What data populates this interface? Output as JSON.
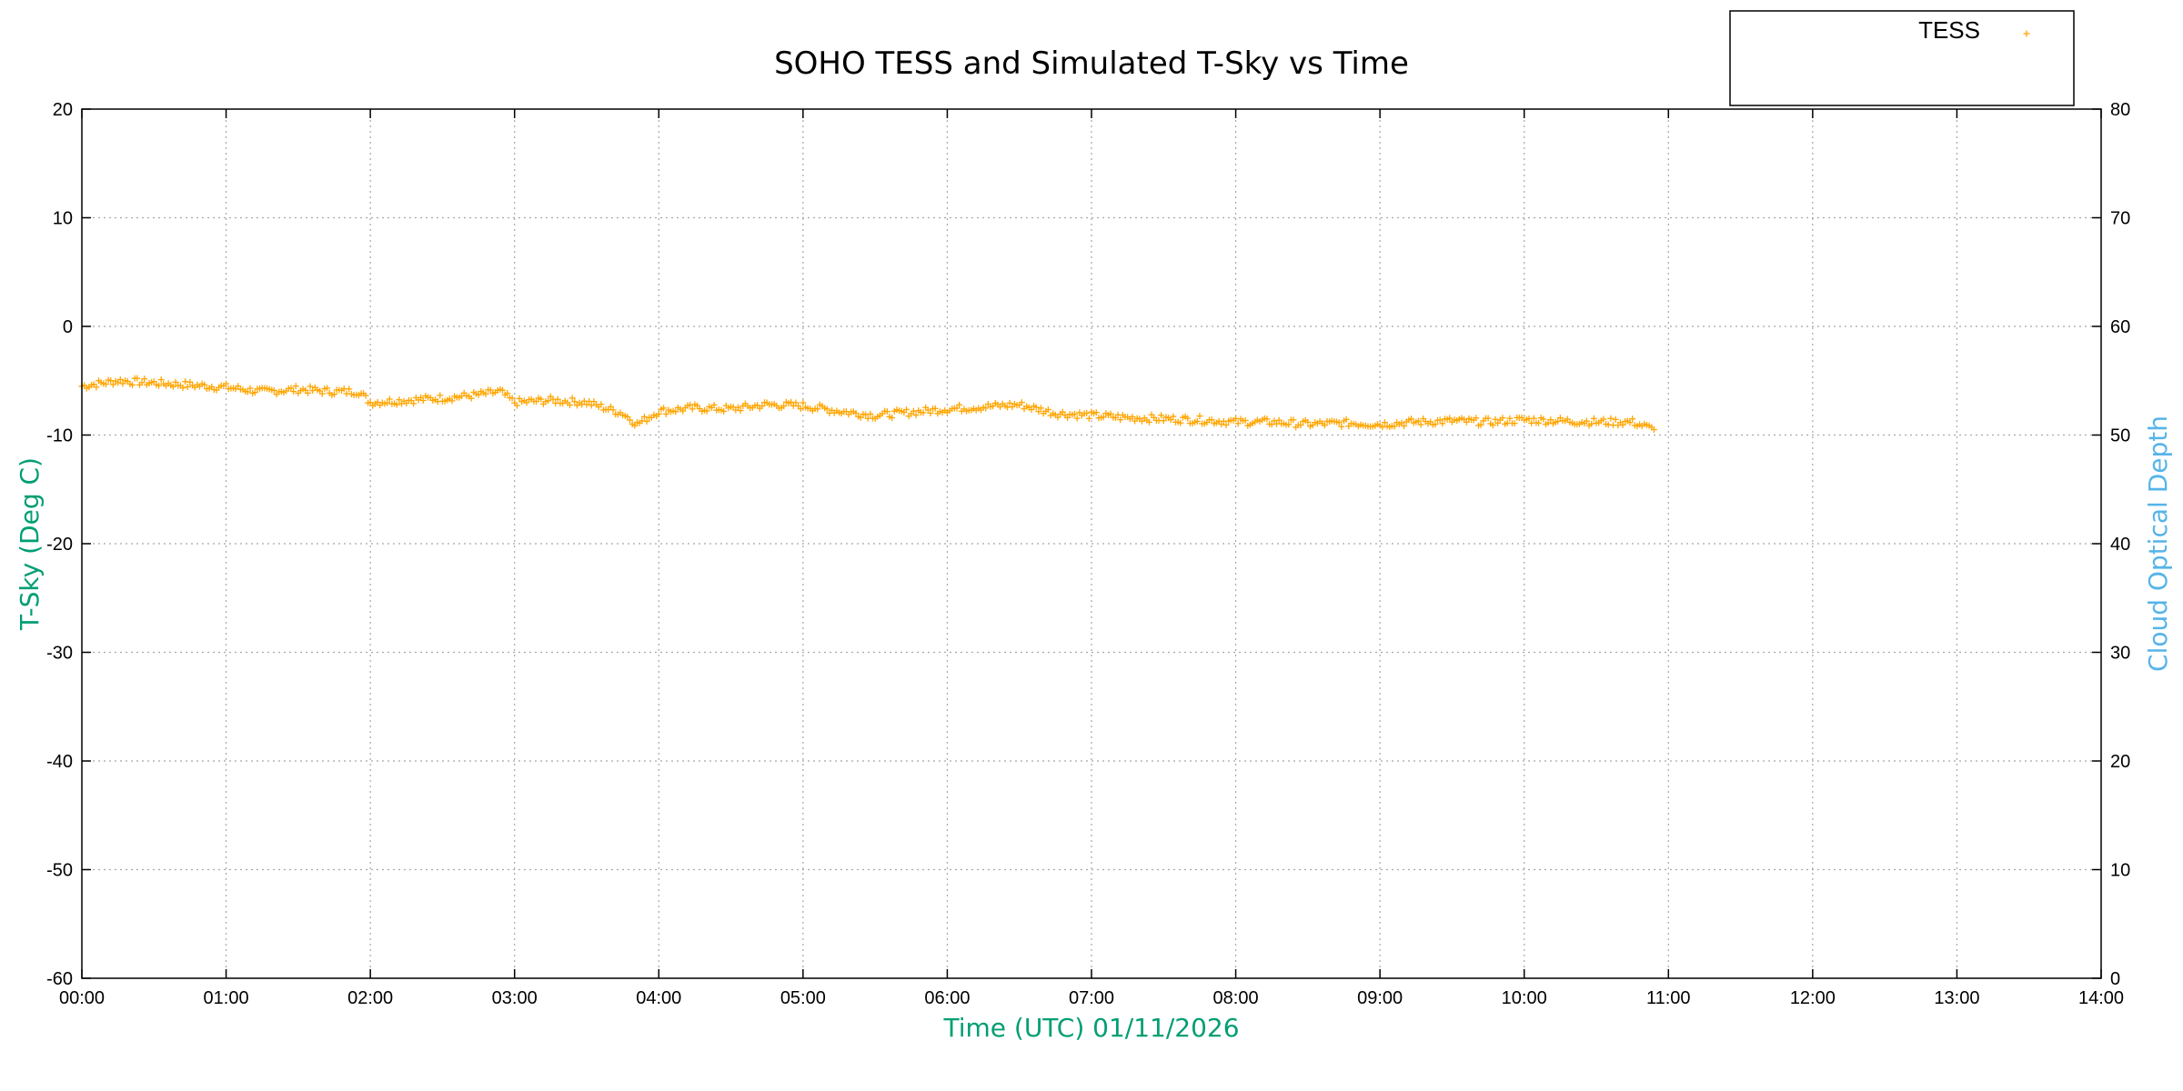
{
  "chart_data": {
    "type": "scatter",
    "title": "SOHO TESS and Simulated T-Sky vs Time",
    "xlabel": "Time (UTC)    01/11/2026",
    "ylabel": "T-Sky (Deg C)",
    "y2label": "Cloud Optical Depth",
    "xlim": [
      0,
      14
    ],
    "ylim": [
      -60,
      20
    ],
    "y2lim": [
      0,
      80
    ],
    "x_ticks": [
      "00:00",
      "01:00",
      "02:00",
      "03:00",
      "04:00",
      "05:00",
      "06:00",
      "07:00",
      "08:00",
      "09:00",
      "10:00",
      "11:00",
      "12:00",
      "13:00",
      "14:00"
    ],
    "y_ticks": [
      "20",
      "10",
      "0",
      "-10",
      "-20",
      "-30",
      "-40",
      "-50",
      "-60"
    ],
    "y2_ticks": [
      "80",
      "70",
      "60",
      "50",
      "40",
      "30",
      "20",
      "10",
      "0"
    ],
    "grid": true,
    "legend_position": "top-right, outside plot",
    "colors": {
      "series": "#ffa500",
      "ylabel": "#009e73",
      "xlabel": "#009e73",
      "y2label": "#56b4e9"
    },
    "series": [
      {
        "name": "TESS",
        "marker": "plus",
        "x_unit": "hours UTC",
        "x": [
          0.0,
          0.25,
          0.5,
          0.75,
          1.0,
          1.25,
          1.5,
          1.75,
          1.92,
          2.0,
          2.25,
          2.5,
          2.75,
          2.9,
          3.0,
          3.25,
          3.5,
          3.75,
          3.85,
          4.0,
          4.25,
          4.5,
          4.75,
          5.0,
          5.25,
          5.5,
          5.75,
          6.0,
          6.25,
          6.5,
          6.75,
          7.0,
          7.25,
          7.5,
          7.75,
          8.0,
          8.25,
          8.5,
          8.75,
          9.0,
          9.25,
          9.5,
          9.75,
          10.0,
          10.25,
          10.5,
          10.75,
          10.9
        ],
        "y": [
          -5.5,
          -5.0,
          -5.2,
          -5.4,
          -5.6,
          -6.0,
          -5.8,
          -6.0,
          -6.0,
          -7.0,
          -6.8,
          -6.6,
          -6.3,
          -6.0,
          -7.0,
          -6.8,
          -7.0,
          -8.0,
          -9.0,
          -7.8,
          -7.5,
          -7.6,
          -7.2,
          -7.3,
          -7.8,
          -8.2,
          -7.9,
          -7.6,
          -7.4,
          -7.2,
          -8.0,
          -8.2,
          -8.4,
          -8.5,
          -8.6,
          -8.8,
          -8.8,
          -9.0,
          -8.9,
          -9.0,
          -8.8,
          -8.7,
          -8.8,
          -8.6,
          -8.7,
          -8.8,
          -8.8,
          -9.5
        ]
      }
    ]
  }
}
